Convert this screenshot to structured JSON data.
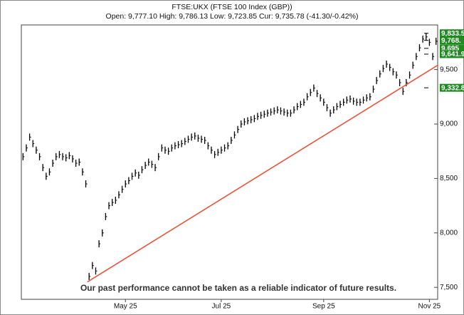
{
  "chart_data": {
    "type": "ohlc",
    "title": "FTSE:UKX (FTSE 100 Index (GBP))",
    "subtitle": "Open: 9,777.10 High: 9,786.13 Low: 9,723.85 Cur: 9,735.78 (-41.30/-0.42%)",
    "annotation": "Our past performance cannot be taken as a reliable indicator of future results.",
    "color": "#000000",
    "values": [
      8700,
      8780,
      8880,
      8820,
      8760,
      8700,
      8600,
      8520,
      8560,
      8640,
      8700,
      8720,
      8700,
      8690,
      8710,
      8680,
      8640,
      8650,
      8560,
      8450,
      7600,
      7700,
      7650,
      7900,
      8000,
      8150,
      8250,
      8280,
      8300,
      8350,
      8400,
      8450,
      8480,
      8520,
      8550,
      8530,
      8580,
      8620,
      8650,
      8630,
      8600,
      8700,
      8780,
      8760,
      8750,
      8780,
      8800,
      8810,
      8820,
      8840,
      8860,
      8880,
      8890,
      8870,
      8860,
      8850,
      8800,
      8760,
      8720,
      8740,
      8760,
      8780,
      8800,
      8850,
      8900,
      8950,
      9000,
      9020,
      9030,
      9040,
      9050,
      9070,
      9080,
      9090,
      9100,
      9110,
      9120,
      9130,
      9120,
      9110,
      9100,
      9100,
      9130,
      9160,
      9180,
      9200,
      9250,
      9290,
      9330,
      9280,
      9240,
      9200,
      9150,
      9100,
      9130,
      9160,
      9180,
      9200,
      9220,
      9230,
      9210,
      9200,
      9200,
      9220,
      9240,
      9250,
      9320,
      9400,
      9460,
      9510,
      9550,
      9520,
      9480,
      9450,
      9380,
      9300,
      9380,
      9450,
      9540,
      9620,
      9700,
      9780,
      9800,
      9750,
      9620,
      9760
    ],
    "xlim": [
      -0.5,
      125.5
    ],
    "xticks": [
      {
        "value": 31,
        "label": "May 25"
      },
      {
        "value": 60,
        "label": "Jul 25"
      },
      {
        "value": 91,
        "label": "Sep 25"
      },
      {
        "value": 123,
        "label": "Nov 25"
      }
    ],
    "ylim": [
      7390,
      9910
    ],
    "yticks": [
      {
        "value": 7500,
        "label": "7,500"
      },
      {
        "value": 8000,
        "label": "8,000"
      },
      {
        "value": 8500,
        "label": "8,500"
      },
      {
        "value": 9000,
        "label": "9,000"
      },
      {
        "value": 9500,
        "label": "9,500"
      }
    ],
    "trendline": {
      "color": "#e8553a",
      "x": [
        19.5,
        125.5
      ],
      "values": [
        7550,
        9540
      ]
    },
    "level_color": "#1f8a1f",
    "levels": [
      {
        "value": 9833.5,
        "label": "9,833.5"
      },
      {
        "value": 9768,
        "label": "9,768."
      },
      {
        "value": 9695,
        "label": "9,695"
      },
      {
        "value": 9641.9,
        "label": "9,641.9"
      },
      {
        "value": 9332.8,
        "label": "9,332.8"
      }
    ]
  }
}
